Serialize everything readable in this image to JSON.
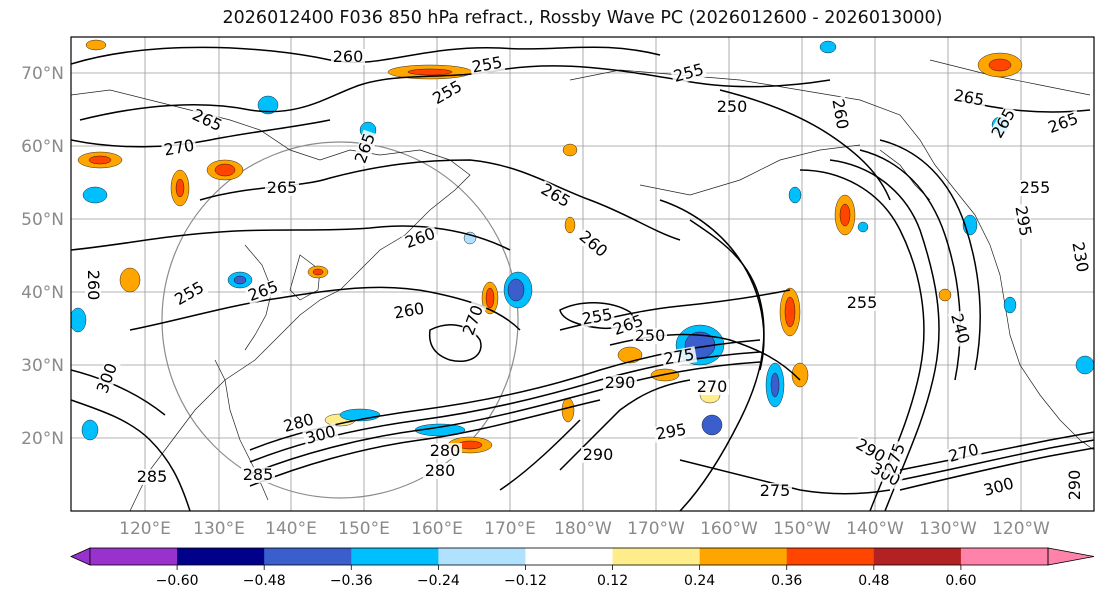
{
  "title": "2026012400 F036 850 hPa refract., Rossby Wave PC (2026012600 - 2026013000)",
  "lat_labels": [
    "70°N",
    "60°N",
    "50°N",
    "40°N",
    "30°N",
    "20°N"
  ],
  "lon_labels": [
    "120°E",
    "130°E",
    "140°E",
    "150°E",
    "160°E",
    "170°E",
    "180°W",
    "170°W",
    "160°W",
    "150°W",
    "140°W",
    "130°W",
    "120°W"
  ],
  "contour_labels": [
    "260",
    "255",
    "255",
    "255",
    "265",
    "250",
    "260",
    "265",
    "265",
    "265",
    "270",
    "265",
    "255",
    "265",
    "265",
    "260",
    "260",
    "260",
    "265",
    "255",
    "270",
    "260",
    "255",
    "250",
    "265",
    "240",
    "290",
    "295",
    "300",
    "280",
    "285",
    "280",
    "290",
    "275",
    "300",
    "275",
    "270",
    "290",
    "300",
    "280",
    "300",
    "285",
    "275",
    "295",
    "290",
    "255",
    "230",
    "270"
  ],
  "colorbar": {
    "tick_labels": [
      "−0.60",
      "−0.48",
      "−0.36",
      "−0.24",
      "−0.12",
      "0.12",
      "0.24",
      "0.36",
      "0.48",
      "0.60"
    ],
    "colors": [
      "#9932cc",
      "#00008b",
      "#3a5fcd",
      "#00bfff",
      "#b0e2ff",
      "#ffffff",
      "#ffec8b",
      "#ffa500",
      "#ff4500",
      "#b22222",
      "#ff82ab"
    ]
  }
}
